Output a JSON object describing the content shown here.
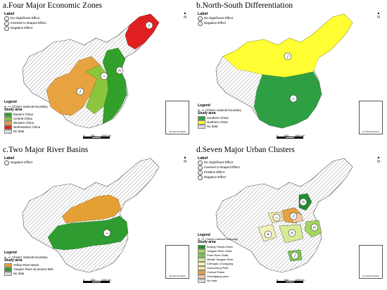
{
  "colors": {
    "hatch": "#c7c7c7",
    "eastern": "#33a02c",
    "central": "#8cc63f",
    "western": "#e6a340",
    "northeastern": "#e02020",
    "southern": "#2ea043",
    "northern": "#ffff33",
    "yellow_river": "#e5a034",
    "yangtze_belt": "#2e9c30",
    "bth": "#1f8f2e",
    "yrd": "#a4d65e",
    "prd": "#79c952",
    "myr": "#d5ec93",
    "cc": "#f3f0b8",
    "gp": "#f6e7a5",
    "cp": "#e6a340",
    "overlap": "#f4c9a0",
    "nodata": "#ffffff"
  },
  "panel_a": {
    "title": "a.Four Major Economic Zones",
    "label_header": "Label",
    "labels": [
      {
        "icon": "no-significant-icon",
        "glyph": "/",
        "text": "No Significant Effect"
      },
      {
        "icon": "inverted-u-icon",
        "glyph": "∩",
        "text": "Inverted U-shaped Effect"
      },
      {
        "icon": "negative-icon",
        "glyph": "−",
        "text": "Negative Effect"
      }
    ],
    "legend_header": "Legend",
    "boundary": "China's national boundary",
    "study_header": "Study area",
    "areas": [
      {
        "key": "eastern",
        "text": "Eastern China"
      },
      {
        "key": "central",
        "text": "Central China"
      },
      {
        "key": "western",
        "text": "Western China"
      },
      {
        "key": "northeastern",
        "text": "Northeastern China"
      },
      {
        "key": "nodata",
        "text": "No data"
      }
    ]
  },
  "panel_b": {
    "title": "b.North-South Differentiation",
    "label_header": "Label",
    "labels": [
      {
        "icon": "no-significant-icon",
        "glyph": "/",
        "text": "No Significant Effect"
      },
      {
        "icon": "negative-icon",
        "glyph": "−",
        "text": "Negative Effect"
      }
    ],
    "legend_header": "Legend",
    "boundary": "China's national boundary",
    "study_header": "Study area",
    "areas": [
      {
        "key": "southern",
        "text": "Southern China"
      },
      {
        "key": "northern",
        "text": "Northern China"
      },
      {
        "key": "nodata",
        "text": "No data"
      }
    ]
  },
  "panel_c": {
    "title": "c.Two Major River Basins",
    "label_header": "Label",
    "labels": [
      {
        "icon": "negative-icon",
        "glyph": "−",
        "text": "Negative Effect"
      }
    ],
    "legend_header": "Legend",
    "boundary": "China's national boundary",
    "study_header": "Study area",
    "areas": [
      {
        "key": "yellow_river",
        "text": "Yellow River Basin"
      },
      {
        "key": "yangtze_belt",
        "text": "Yangtze River Economic Belt"
      },
      {
        "key": "nodata",
        "text": "No data"
      }
    ]
  },
  "panel_d": {
    "title": "d.Seven Major Urban Clusters",
    "label_header": "Label",
    "labels": [
      {
        "icon": "no-significant-icon",
        "glyph": "/",
        "text": "No Significant Effect"
      },
      {
        "icon": "inverted-u-icon",
        "glyph": "∩",
        "text": "Inverted U-shaped Effect"
      },
      {
        "icon": "positive-icon",
        "glyph": "+",
        "text": "Positive Effect"
      },
      {
        "icon": "negative-icon",
        "glyph": "−",
        "text": "Negative Effect"
      }
    ],
    "legend_header": "Legend",
    "boundary": "China's national boundary",
    "study_header": "Study area",
    "areas": [
      {
        "key": "bth",
        "text": "Beijing-Tianjin-Hebei"
      },
      {
        "key": "yrd",
        "text": "Yangtze River Delta"
      },
      {
        "key": "prd",
        "text": "Pearl River Delta"
      },
      {
        "key": "myr",
        "text": "Middle Yangtze River"
      },
      {
        "key": "cc",
        "text": "Chengdu-Chongqing"
      },
      {
        "key": "gp",
        "text": "Guanzhong Plain"
      },
      {
        "key": "cp",
        "text": "Central Plains"
      },
      {
        "key": "overlap",
        "text": "Overlapping area"
      },
      {
        "key": "nodata",
        "text": "No data"
      }
    ]
  },
  "compass_letter": "N",
  "scale_labels": [
    "0",
    "500",
    "1000 km"
  ],
  "inset_caption": "the China Sea Islands"
}
